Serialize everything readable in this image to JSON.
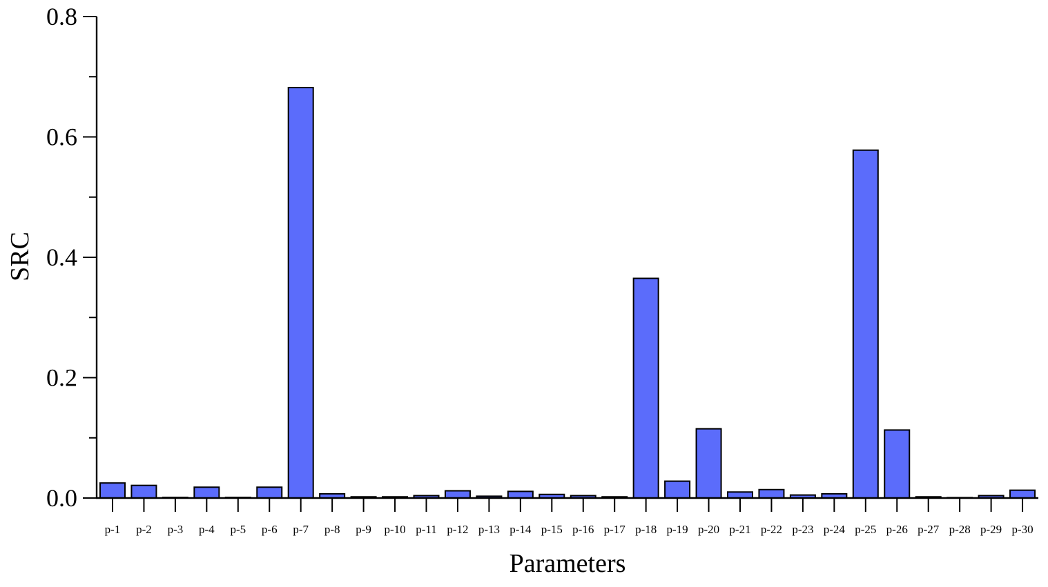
{
  "chart_data": {
    "type": "bar",
    "title": "",
    "xlabel": "Parameters",
    "ylabel": "SRC",
    "ylim": [
      0,
      0.8
    ],
    "yticks": [
      "0.0",
      "0.2",
      "0.4",
      "0.6",
      "0.8"
    ],
    "ytick_values": [
      0,
      0.2,
      0.4,
      0.6,
      0.8
    ],
    "categories": [
      "p-1",
      "p-2",
      "p-3",
      "p-4",
      "p-5",
      "p-6",
      "p-7",
      "p-8",
      "p-9",
      "p-10",
      "p-11",
      "p-12",
      "p-13",
      "p-14",
      "p-15",
      "p-16",
      "p-17",
      "p-18",
      "p-19",
      "p-20",
      "p-21",
      "p-22",
      "p-23",
      "p-24",
      "p-25",
      "p-26",
      "p-27",
      "p-28",
      "p-29",
      "p-30"
    ],
    "values": [
      0.025,
      0.021,
      0.001,
      0.018,
      0.001,
      0.018,
      0.682,
      0.007,
      0.002,
      0.002,
      0.004,
      0.012,
      0.003,
      0.011,
      0.006,
      0.004,
      0.002,
      0.365,
      0.028,
      0.115,
      0.01,
      0.014,
      0.005,
      0.007,
      0.578,
      0.113,
      0.002,
      0.0005,
      0.004,
      0.013
    ],
    "bar_color": "#5b6cfb",
    "grid": false,
    "legend": "none"
  }
}
